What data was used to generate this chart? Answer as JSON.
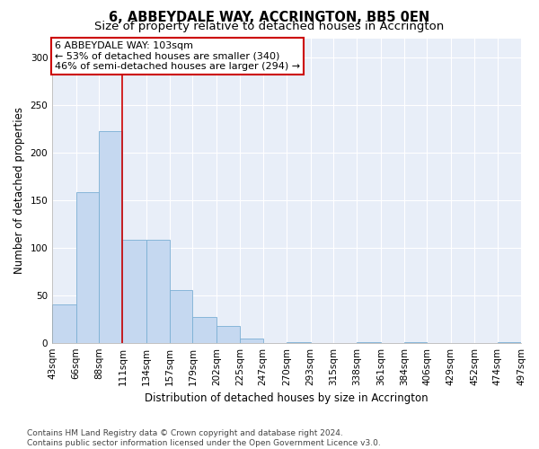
{
  "title": "6, ABBEYDALE WAY, ACCRINGTON, BB5 0EN",
  "subtitle": "Size of property relative to detached houses in Accrington",
  "xlabel": "Distribution of detached houses by size in Accrington",
  "ylabel": "Number of detached properties",
  "bar_color": "#c5d8f0",
  "bar_edge_color": "#7bafd4",
  "background_color": "#e8eef8",
  "annotation_box_color": "#cc0000",
  "vline_color": "#cc0000",
  "vline_x": 111,
  "annotation_lines": [
    "6 ABBEYDALE WAY: 103sqm",
    "← 53% of detached houses are smaller (340)",
    "46% of semi-detached houses are larger (294) →"
  ],
  "bin_edges": [
    43,
    66,
    88,
    111,
    134,
    157,
    179,
    202,
    225,
    247,
    270,
    293,
    315,
    338,
    361,
    384,
    406,
    429,
    452,
    474,
    497
  ],
  "bar_heights": [
    40,
    158,
    222,
    108,
    108,
    55,
    27,
    18,
    4,
    0,
    1,
    0,
    0,
    1,
    0,
    1,
    0,
    0,
    0,
    1
  ],
  "ylim": [
    0,
    320
  ],
  "yticks": [
    0,
    50,
    100,
    150,
    200,
    250,
    300
  ],
  "footer_lines": [
    "Contains HM Land Registry data © Crown copyright and database right 2024.",
    "Contains public sector information licensed under the Open Government Licence v3.0."
  ],
  "title_fontsize": 10.5,
  "subtitle_fontsize": 9.5,
  "axis_label_fontsize": 8.5,
  "tick_fontsize": 7.5,
  "annotation_fontsize": 8,
  "footer_fontsize": 6.5
}
